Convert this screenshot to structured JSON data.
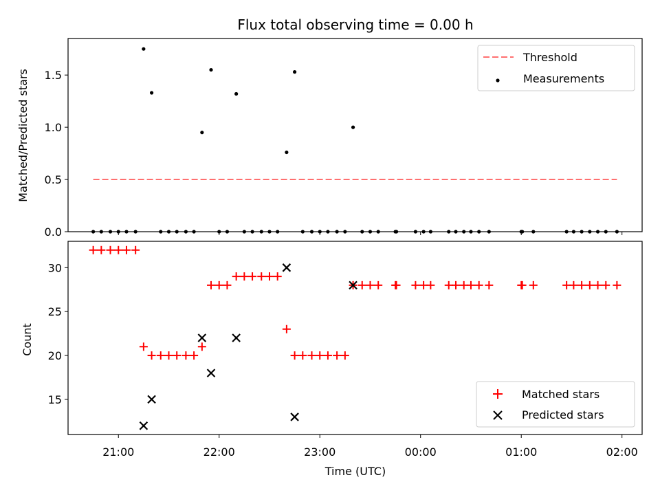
{
  "chart_data": {
    "type": "scatter",
    "title": "Flux total observing time = 0.00 h",
    "x_tick_labels": [
      "21:00",
      "22:00",
      "23:00",
      "00:00",
      "01:00",
      "02:00"
    ],
    "xlabel": "Time (UTC)",
    "x_unit_hint": "hours after 21:00 UTC",
    "panels": [
      {
        "name": "ratio",
        "ylabel": "Matched/Predicted stars",
        "ylim": [
          0,
          1.85
        ],
        "y_ticks": [
          "0.0",
          "0.5",
          "1.0",
          "1.5"
        ],
        "legend_position": "top-right",
        "threshold": {
          "name": "Threshold",
          "value": 0.5,
          "x_start": -0.25,
          "x_end": 4.95,
          "color": "#ff7070",
          "style": "dashed"
        },
        "measurements": {
          "name": "Measurements",
          "color": "#000000",
          "points": [
            [
              -0.25,
              0
            ],
            [
              -0.17,
              0
            ],
            [
              -0.08,
              0
            ],
            [
              0,
              0
            ],
            [
              0.08,
              0
            ],
            [
              0.17,
              0
            ],
            [
              0.25,
              1.75
            ],
            [
              0.33,
              1.33
            ],
            [
              0.42,
              0
            ],
            [
              0.5,
              0
            ],
            [
              0.58,
              0
            ],
            [
              0.67,
              0
            ],
            [
              0.75,
              0
            ],
            [
              0.83,
              0.95
            ],
            [
              0.92,
              1.55
            ],
            [
              1,
              0
            ],
            [
              1.08,
              0
            ],
            [
              1.17,
              1.32
            ],
            [
              1.25,
              0
            ],
            [
              1.33,
              0
            ],
            [
              1.42,
              0
            ],
            [
              1.5,
              0
            ],
            [
              1.58,
              0
            ],
            [
              1.67,
              0.76
            ],
            [
              1.75,
              1.53
            ],
            [
              1.83,
              0
            ],
            [
              1.92,
              0
            ],
            [
              2,
              0
            ],
            [
              2.08,
              0
            ],
            [
              2.17,
              0
            ],
            [
              2.25,
              0
            ],
            [
              2.33,
              1.0
            ],
            [
              2.42,
              0
            ],
            [
              2.5,
              0
            ],
            [
              2.58,
              0
            ],
            [
              2.75,
              0
            ],
            [
              2.76,
              0
            ],
            [
              2.95,
              0
            ],
            [
              3.03,
              0
            ],
            [
              3.1,
              0
            ],
            [
              3.28,
              0
            ],
            [
              3.35,
              0
            ],
            [
              3.43,
              0
            ],
            [
              3.5,
              0
            ],
            [
              3.58,
              0
            ],
            [
              3.68,
              0
            ],
            [
              4.0,
              0
            ],
            [
              4.01,
              0
            ],
            [
              4.12,
              0
            ],
            [
              4.45,
              0
            ],
            [
              4.52,
              0
            ],
            [
              4.6,
              0
            ],
            [
              4.68,
              0
            ],
            [
              4.76,
              0
            ],
            [
              4.84,
              0
            ],
            [
              4.95,
              0
            ]
          ]
        }
      },
      {
        "name": "counts",
        "ylabel": "Count",
        "ylim": [
          11,
          33
        ],
        "y_ticks": [
          "15",
          "20",
          "25",
          "30"
        ],
        "legend_position": "lower-right",
        "matched": {
          "name": "Matched stars",
          "color": "#ff0000",
          "marker": "+",
          "points": [
            [
              -0.25,
              32
            ],
            [
              -0.17,
              32
            ],
            [
              -0.08,
              32
            ],
            [
              0,
              32
            ],
            [
              0.08,
              32
            ],
            [
              0.17,
              32
            ],
            [
              0.25,
              21
            ],
            [
              0.33,
              20
            ],
            [
              0.42,
              20
            ],
            [
              0.5,
              20
            ],
            [
              0.58,
              20
            ],
            [
              0.67,
              20
            ],
            [
              0.75,
              20
            ],
            [
              0.83,
              21
            ],
            [
              0.92,
              28
            ],
            [
              1,
              28
            ],
            [
              1.08,
              28
            ],
            [
              1.17,
              29
            ],
            [
              1.25,
              29
            ],
            [
              1.33,
              29
            ],
            [
              1.42,
              29
            ],
            [
              1.5,
              29
            ],
            [
              1.58,
              29
            ],
            [
              1.67,
              23
            ],
            [
              1.75,
              20
            ],
            [
              1.83,
              20
            ],
            [
              1.92,
              20
            ],
            [
              2,
              20
            ],
            [
              2.08,
              20
            ],
            [
              2.17,
              20
            ],
            [
              2.25,
              20
            ],
            [
              2.33,
              28
            ],
            [
              2.42,
              28
            ],
            [
              2.5,
              28
            ],
            [
              2.58,
              28
            ],
            [
              2.75,
              28
            ],
            [
              2.76,
              28
            ],
            [
              2.95,
              28
            ],
            [
              3.03,
              28
            ],
            [
              3.1,
              28
            ],
            [
              3.28,
              28
            ],
            [
              3.35,
              28
            ],
            [
              3.43,
              28
            ],
            [
              3.5,
              28
            ],
            [
              3.58,
              28
            ],
            [
              3.68,
              28
            ],
            [
              4.0,
              28
            ],
            [
              4.01,
              28
            ],
            [
              4.12,
              28
            ],
            [
              4.45,
              28
            ],
            [
              4.52,
              28
            ],
            [
              4.6,
              28
            ],
            [
              4.68,
              28
            ],
            [
              4.76,
              28
            ],
            [
              4.84,
              28
            ],
            [
              4.95,
              28
            ]
          ]
        },
        "predicted": {
          "name": "Predicted stars",
          "color": "#000000",
          "marker": "x",
          "points": [
            [
              0.25,
              12
            ],
            [
              0.33,
              15
            ],
            [
              0.83,
              22
            ],
            [
              0.92,
              18
            ],
            [
              1.17,
              22
            ],
            [
              1.67,
              30
            ],
            [
              1.75,
              13
            ],
            [
              2.33,
              28
            ]
          ]
        }
      }
    ],
    "xlim": [
      -0.5,
      5.2
    ]
  }
}
